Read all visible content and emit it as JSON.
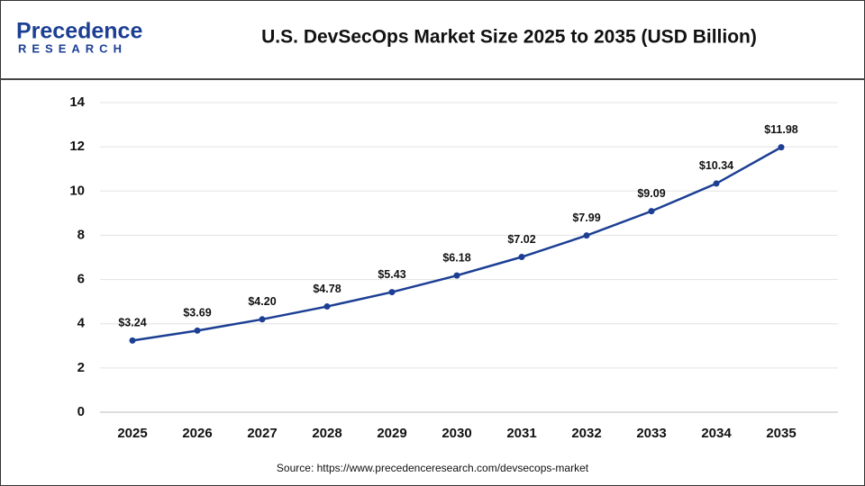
{
  "logo": {
    "name": "Precedence",
    "tagline": "RESEARCH"
  },
  "chart_data": {
    "type": "line",
    "title": "U.S. DevSecOps Market Size 2025 to 2035 (USD Billion)",
    "source": "Source: https://www.precedenceresearch.com/devsecops-market",
    "categories": [
      "2025",
      "2026",
      "2027",
      "2028",
      "2029",
      "2030",
      "2031",
      "2032",
      "2033",
      "2034",
      "2035"
    ],
    "series": [
      {
        "name": "U.S. DevSecOps Market Size",
        "color": "#1c3f94",
        "values": [
          3.24,
          3.69,
          4.2,
          4.78,
          5.43,
          6.18,
          7.02,
          7.99,
          9.09,
          10.34,
          11.98
        ],
        "value_labels": [
          "$3.24",
          "$3.69",
          "$4.20",
          "$4.78",
          "$5.43",
          "$6.18",
          "$7.02",
          "$7.99",
          "$9.09",
          "$10.34",
          "$11.98"
        ]
      }
    ],
    "ylim": [
      0,
      14
    ],
    "yticks": [
      0,
      2,
      4,
      6,
      8,
      10,
      12,
      14
    ],
    "grid": true
  }
}
